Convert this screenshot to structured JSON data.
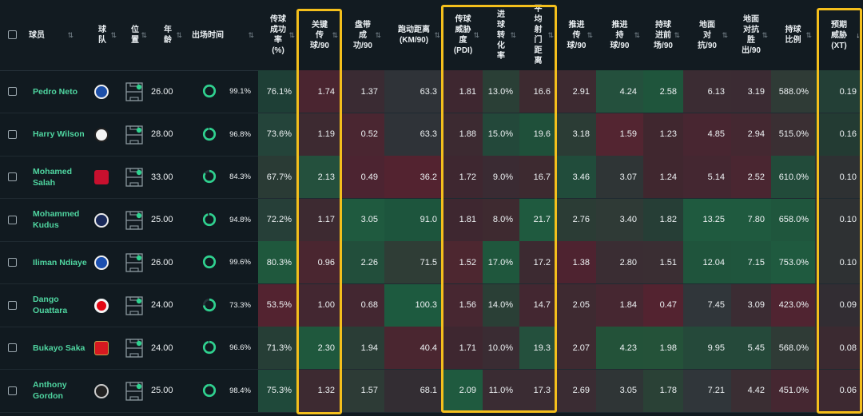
{
  "headers": {
    "player": "球员",
    "team": "球\n队",
    "position": "位\n置",
    "age": "年\n龄",
    "minutes": "出场时间",
    "stats": [
      "传球\n成功\n率\n(%)",
      "关键\n传\n球/90",
      "盘带\n成\n功/90",
      "跑动距离\n(KM/90)",
      "传球\n威胁\n度\n(PDI)",
      "进\n球\n转\n化\n率",
      "平\n均\n射\n门\n距\n离",
      "推进\n传\n球/90",
      "推进\n持\n球/90",
      "持球\n进前\n场/90",
      "地面\n对\n抗/90",
      "地面\n对抗\n胜\n出/90",
      "持球\n比例",
      "预期\n威胁\n(XT)"
    ]
  },
  "sort_icons": {
    "default": "⇅",
    "active": "↓"
  },
  "players": [
    {
      "name": "Pedro Neto",
      "club_icon": "chelsea-crest-icon",
      "age": "26.00",
      "minutes_pct": "99.1%",
      "minutes_value": 99.1,
      "stats": [
        "76.1%",
        "1.74",
        "1.37",
        "63.3",
        "1.81",
        "13.0%",
        "16.6",
        "2.91",
        "4.24",
        "2.58",
        "6.13",
        "3.19",
        "588.0%",
        "0.19"
      ]
    },
    {
      "name": "Harry Wilson",
      "club_icon": "fulham-crest-icon",
      "age": "28.00",
      "minutes_pct": "96.8%",
      "minutes_value": 96.8,
      "stats": [
        "73.6%",
        "1.19",
        "0.52",
        "63.3",
        "1.88",
        "15.0%",
        "19.6",
        "3.18",
        "1.59",
        "1.23",
        "4.85",
        "2.94",
        "515.0%",
        "0.16"
      ]
    },
    {
      "name": "Mohamed Salah",
      "club_icon": "liverpool-crest-icon",
      "age": "33.00",
      "minutes_pct": "84.3%",
      "minutes_value": 84.3,
      "stats": [
        "67.7%",
        "2.13",
        "0.49",
        "36.2",
        "1.72",
        "9.0%",
        "16.7",
        "3.46",
        "3.07",
        "1.24",
        "5.14",
        "2.52",
        "610.0%",
        "0.10"
      ]
    },
    {
      "name": "Mohammed Kudus",
      "club_icon": "tottenham-crest-icon",
      "age": "25.00",
      "minutes_pct": "94.8%",
      "minutes_value": 94.8,
      "stats": [
        "72.2%",
        "1.17",
        "3.05",
        "91.0",
        "1.81",
        "8.0%",
        "21.7",
        "2.76",
        "3.40",
        "1.82",
        "13.25",
        "7.80",
        "658.0%",
        "0.10"
      ]
    },
    {
      "name": "Iliman Ndiaye",
      "club_icon": "everton-crest-icon",
      "age": "26.00",
      "minutes_pct": "99.6%",
      "minutes_value": 99.6,
      "stats": [
        "80.3%",
        "0.96",
        "2.26",
        "71.5",
        "1.52",
        "17.0%",
        "17.2",
        "1.38",
        "2.80",
        "1.51",
        "12.04",
        "7.15",
        "753.0%",
        "0.10"
      ]
    },
    {
      "name": "Dango Ouattara",
      "club_icon": "brentford-crest-icon",
      "age": "24.00",
      "minutes_pct": "73.3%",
      "minutes_value": 73.3,
      "stats": [
        "53.5%",
        "1.00",
        "0.68",
        "100.3",
        "1.56",
        "14.0%",
        "14.7",
        "2.05",
        "1.84",
        "0.47",
        "7.45",
        "3.09",
        "423.0%",
        "0.09"
      ]
    },
    {
      "name": "Bukayo Saka",
      "club_icon": "arsenal-crest-icon",
      "age": "24.00",
      "minutes_pct": "96.6%",
      "minutes_value": 96.6,
      "stats": [
        "71.3%",
        "2.30",
        "1.94",
        "40.4",
        "1.71",
        "10.0%",
        "19.3",
        "2.07",
        "4.23",
        "1.98",
        "9.95",
        "5.45",
        "568.0%",
        "0.08"
      ]
    },
    {
      "name": "Anthony Gordon",
      "club_icon": "newcastle-crest-icon",
      "age": "25.00",
      "minutes_pct": "98.4%",
      "minutes_value": 98.4,
      "stats": [
        "75.3%",
        "1.32",
        "1.57",
        "68.1",
        "2.09",
        "11.0%",
        "17.3",
        "2.69",
        "3.05",
        "1.78",
        "7.21",
        "4.42",
        "451.0%",
        "0.06"
      ]
    }
  ],
  "cell_colors": [
    [
      "#1e3f36",
      "#4a2530",
      "#3a2b33",
      "#2f3338",
      "#3e2730",
      "#2a3f36",
      "#3d2a30",
      "#3d2a31",
      "#24503d",
      "#1f553c",
      "#3b2c33",
      "#3b2b33",
      "#2f3b36",
      "#233f36"
    ],
    [
      "#24443a",
      "#3d2a31",
      "#4a2631",
      "#2f3338",
      "#3c2a31",
      "#23483a",
      "#1f503a",
      "#2b3c35",
      "#532531",
      "#40272f",
      "#482631",
      "#442831",
      "#3a2f33",
      "#233b33"
    ],
    [
      "#2a3b35",
      "#24503d",
      "#4c2431",
      "#532330",
      "#3e2730",
      "#3a2b33",
      "#3d2a30",
      "#214c3b",
      "#2f3536",
      "#40272f",
      "#442731",
      "#4a2631",
      "#224b3a",
      "#2e3133"
    ],
    [
      "#263f38",
      "#3d2a31",
      "#1f5a3f",
      "#1d553d",
      "#3e2730",
      "#3e2a30",
      "#1f5a3f",
      "#2b3c35",
      "#2f3a36",
      "#263e36",
      "#1f5a3f",
      "#1f5a3f",
      "#1f563d",
      "#2e3133"
    ],
    [
      "#1f583d",
      "#4a2630",
      "#224e3b",
      "#2f3d36",
      "#4d2730",
      "#1f573d",
      "#3c2a31",
      "#4e2330",
      "#3a2d33",
      "#3a2e33",
      "#1f543c",
      "#1f553d",
      "#1f5a3f",
      "#2e3133"
    ],
    [
      "#532330",
      "#432731",
      "#432731",
      "#1d5a3f",
      "#472731",
      "#2a3f36",
      "#432731",
      "#3e2a31",
      "#462731",
      "#532330",
      "#30363a",
      "#3b2c33",
      "#502431",
      "#322d33"
    ],
    [
      "#263e36",
      "#1f583d",
      "#2a3d36",
      "#4a2630",
      "#3e2730",
      "#3a2c33",
      "#24503d",
      "#3e2a31",
      "#235239",
      "#245239",
      "#25493a",
      "#25493a",
      "#2f3b36",
      "#3b2a31"
    ],
    [
      "#1f493a",
      "#3d2a31",
      "#2d3b36",
      "#332d33",
      "#1f5a3f",
      "#3a2c33",
      "#3a2c33",
      "#3a2c33",
      "#2f3536",
      "#2a4136",
      "#30363a",
      "#3a2e33",
      "#452731",
      "#3d2931"
    ]
  ]
}
